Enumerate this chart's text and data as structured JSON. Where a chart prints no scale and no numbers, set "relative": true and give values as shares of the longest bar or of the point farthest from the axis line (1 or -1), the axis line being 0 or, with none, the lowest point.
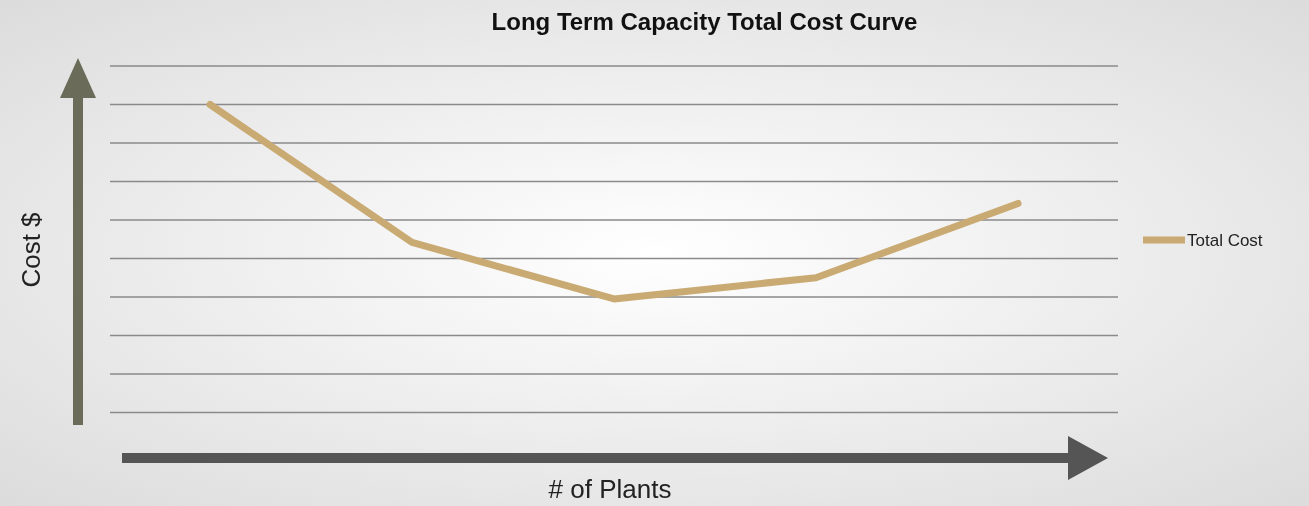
{
  "chart_data": {
    "type": "line",
    "title": "Long Term Capacity Total Cost Curve",
    "xlabel": "# of Plants",
    "ylabel": "Cost $",
    "categories": [
      null,
      null,
      null,
      null,
      null
    ],
    "relative": true,
    "grid": "y",
    "legend": "right",
    "series": [
      {
        "name": "Total Cost",
        "color": "#c9aa72",
        "values": [
          1,
          0.61,
          0.45,
          0.51,
          0.72
        ]
      }
    ]
  }
}
